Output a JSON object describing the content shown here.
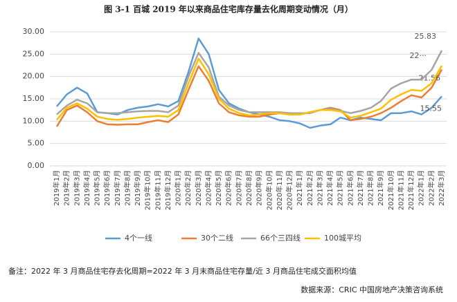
{
  "chart_data": {
    "type": "line",
    "title": "图 3-1 百城 2019 年以来商品住宅库存量去化周期变动情况（月）",
    "categories": [
      "2019年1月",
      "2019年2月",
      "2019年3月",
      "2019年4月",
      "2019年5月",
      "2019年6月",
      "2019年7月",
      "2019年8月",
      "2019年9月",
      "2019年10月",
      "2019年11月",
      "2019年12月",
      "2020年1月",
      "2020年2月",
      "2020年3月",
      "2020年4月",
      "2020年5月",
      "2020年6月",
      "2020年7月",
      "2020年8月",
      "2020年9月",
      "2020年10月",
      "2020年11月",
      "2020年12月",
      "2021年1月",
      "2021年2月",
      "2021年3月",
      "2021年4月",
      "2021年5月",
      "2021年6月",
      "2021年7月",
      "2021年8月",
      "2021年9月",
      "2021年10月",
      "2021年11月",
      "2021年12月",
      "2022年1月",
      "2022年2月",
      "2022年3月"
    ],
    "series": [
      {
        "name": "4个一线",
        "color": "#5b9bd5",
        "values": [
          13.3,
          16,
          17.5,
          16.2,
          12,
          11.8,
          11.5,
          12.5,
          13,
          13.3,
          13.8,
          13.3,
          14.5,
          21,
          28.5,
          25,
          17,
          14,
          12.8,
          12,
          11.5,
          11,
          10.2,
          10,
          9.5,
          8.5,
          9,
          9.3,
          10.8,
          10.2,
          10.8,
          10.5,
          10.2,
          11.8,
          11.8,
          12.2,
          11.5,
          13,
          15.55
        ]
      },
      {
        "name": "30个二线",
        "color": "#ed7d31",
        "values": [
          8.8,
          12.5,
          13.5,
          12,
          10,
          9.3,
          9.2,
          9.3,
          9.3,
          9.8,
          10.2,
          9.8,
          11.5,
          17,
          22.3,
          19,
          14,
          12,
          11.3,
          11,
          11,
          11.5,
          11.8,
          11.5,
          11.5,
          12,
          12.5,
          13,
          12.5,
          10.2,
          10.5,
          11,
          11.8,
          13,
          14.5,
          15.8,
          15.3,
          17.5,
          21.56
        ]
      },
      {
        "name": "66个三四线",
        "color": "#a5a5a5",
        "values": [
          11.5,
          13.5,
          14.8,
          14,
          12,
          11.8,
          11.8,
          12,
          12.2,
          12.3,
          12.3,
          12,
          13.5,
          20,
          25.3,
          22,
          15.5,
          13.5,
          12.5,
          12,
          12,
          12,
          12,
          11.8,
          11.8,
          11.8,
          12.5,
          12.8,
          12.3,
          11.8,
          12.3,
          13,
          14.5,
          17.3,
          18.5,
          19.3,
          19.3,
          21.5,
          25.83
        ]
      },
      {
        "name": "100城平均",
        "color": "#ffc000",
        "values": [
          10.3,
          13,
          14,
          12.8,
          11,
          10.5,
          10.3,
          10.5,
          10.8,
          11,
          11.2,
          11,
          12.5,
          18.5,
          24,
          20.5,
          15,
          12.8,
          11.8,
          11.3,
          11.5,
          11.8,
          11.8,
          11.5,
          11.5,
          12,
          12.5,
          12.5,
          12.2,
          10.8,
          11.2,
          12,
          12.8,
          14.8,
          16,
          17,
          16.8,
          18.5,
          22.4
        ],
        "value_labels": [
          null,
          null,
          null,
          null,
          null,
          null,
          null,
          null,
          null,
          null,
          null,
          null,
          null,
          null,
          null,
          null,
          null,
          null,
          null,
          null,
          null,
          null,
          null,
          null,
          null,
          null,
          null,
          null,
          null,
          null,
          null,
          null,
          null,
          null,
          null,
          null,
          null,
          null,
          "22···"
        ]
      }
    ],
    "ylim": [
      0,
      30
    ],
    "yticks": [
      {
        "value": 0,
        "label": "0.00"
      },
      {
        "value": 5,
        "label": "5.00"
      },
      {
        "value": 10,
        "label": "10.00"
      },
      {
        "value": 15,
        "label": "15.00"
      },
      {
        "value": 20,
        "label": "20.00"
      },
      {
        "value": 25,
        "label": "25.00"
      },
      {
        "value": 30,
        "label": "30.00"
      }
    ],
    "grid": true,
    "legend": "bottom",
    "note": "备注：2022 年 3 月商品住宅存去化周期=2022 年 3 月末商品住宅存量/近 3 月商品住宅成交面积均值",
    "source": "数据来源：CRIC 中国房地产决策咨询系统"
  }
}
